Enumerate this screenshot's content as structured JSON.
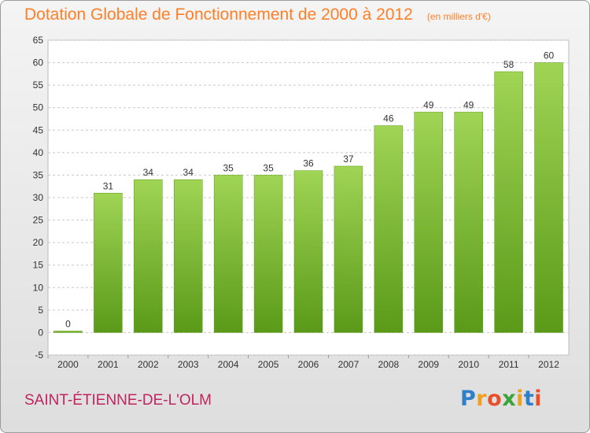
{
  "chart_data": {
    "type": "bar",
    "title": "Dotation Globale de Fonctionnement de 2000 à 2012",
    "subtitle": "(en milliers d'€)",
    "categories": [
      "2000",
      "2001",
      "2002",
      "2003",
      "2004",
      "2005",
      "2006",
      "2007",
      "2008",
      "2009",
      "2010",
      "2011",
      "2012"
    ],
    "values": [
      0,
      31,
      34,
      34,
      35,
      35,
      36,
      37,
      46,
      49,
      49,
      58,
      60
    ],
    "ylim": [
      -5,
      65
    ],
    "yticks": [
      -5,
      0,
      5,
      10,
      15,
      20,
      25,
      30,
      35,
      40,
      45,
      50,
      55,
      60,
      65
    ],
    "grid": true,
    "bar_color": "#7cc030",
    "bar_color_light": "#a0d455",
    "bar_color_dark": "#5a9a18"
  },
  "commune": "SAINT-ÉTIENNE-DE-L'OLM",
  "logo": {
    "letters": [
      "P",
      "r",
      "o",
      "x",
      "i",
      "t",
      "i"
    ],
    "colors": [
      "#2f80c8",
      "#f0a020",
      "#e8502a",
      "#3aa43a",
      "#f0a020",
      "#2f80c8",
      "#e8502a"
    ]
  },
  "colors": {
    "title": "#ff7f27",
    "commune": "#c0245c"
  }
}
